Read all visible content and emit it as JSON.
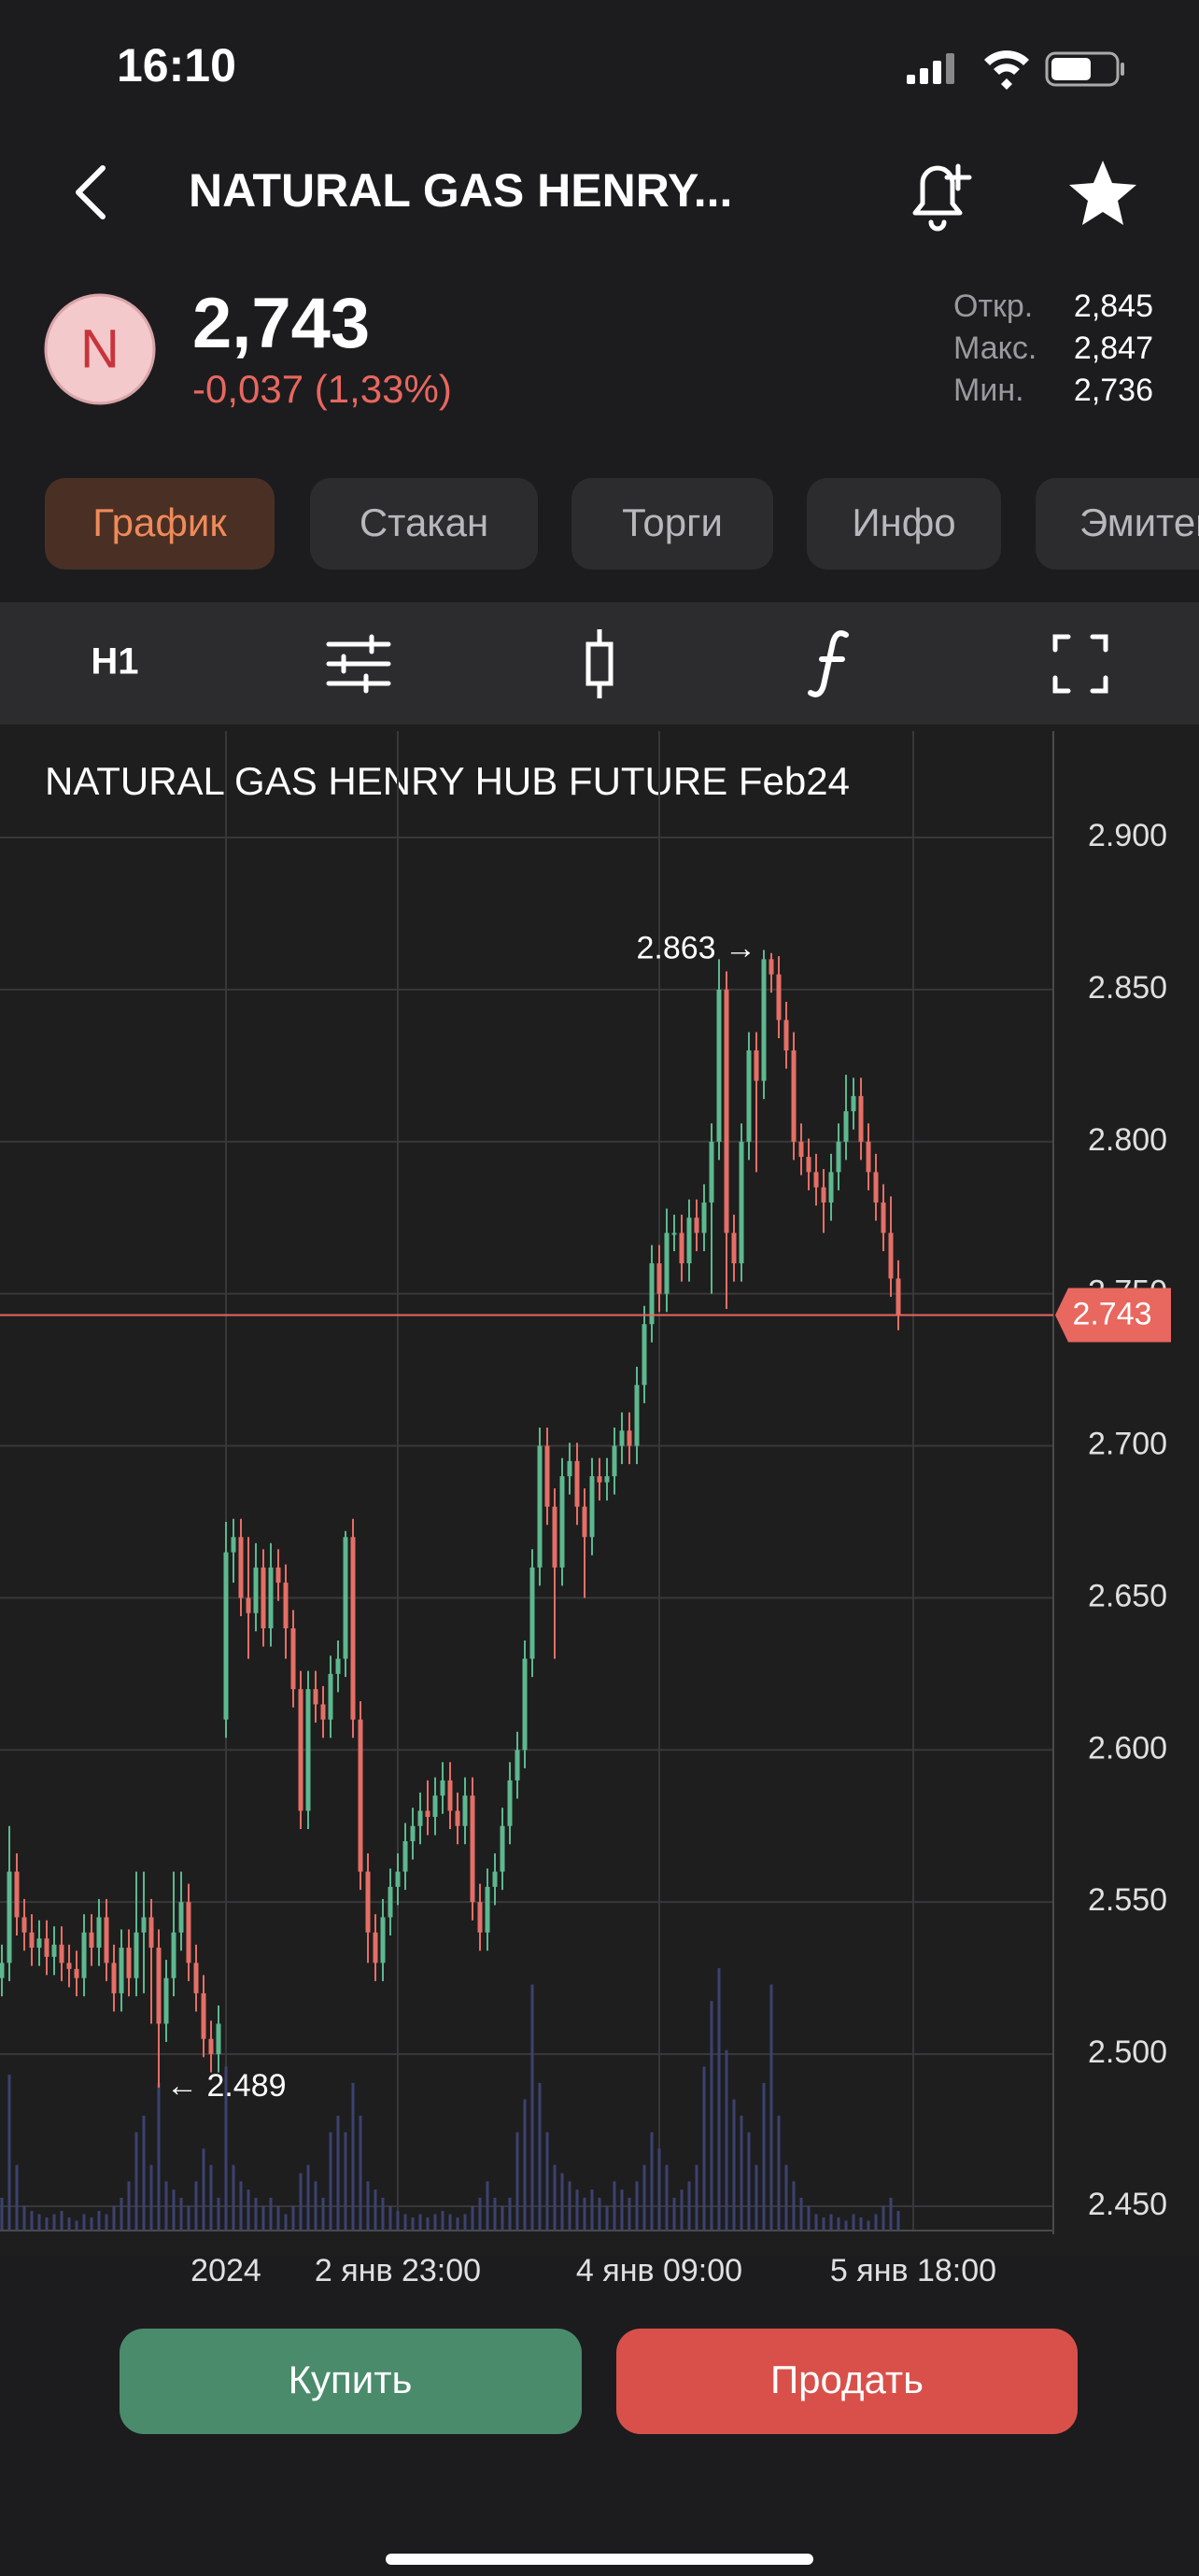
{
  "status_bar": {
    "time": "16:10"
  },
  "header": {
    "title": "NATURAL GAS HENRY..."
  },
  "quote": {
    "icon_letter": "N",
    "price": "2,743",
    "change": "-0,037 (1,33%)",
    "stats": [
      {
        "label": "Откр.",
        "value": "2,845"
      },
      {
        "label": "Макс.",
        "value": "2,847"
      },
      {
        "label": "Мин.",
        "value": "2,736"
      }
    ]
  },
  "tabs": [
    "График",
    "Стакан",
    "Торги",
    "Инфо",
    "Эмитент"
  ],
  "toolbar": {
    "interval": "H1"
  },
  "buttons": {
    "buy": "Купить",
    "sell": "Продать"
  },
  "chart_data": {
    "type": "candlestick",
    "title": "NATURAL GAS HENRY HUB FUTURE Feb24",
    "categories": [
      null,
      null,
      null,
      null,
      null,
      null,
      null,
      null,
      null,
      null,
      null,
      null,
      null,
      null,
      null,
      null,
      null,
      null,
      null,
      null,
      null,
      null,
      null,
      null,
      null,
      null,
      null,
      null,
      null,
      null,
      "2024",
      null,
      null,
      null,
      null,
      null,
      null,
      null,
      null,
      null,
      null,
      null,
      null,
      null,
      null,
      null,
      null,
      null,
      null,
      null,
      null,
      null,
      null,
      "2 янв 23:00",
      null,
      null,
      null,
      null,
      null,
      null,
      null,
      null,
      null,
      null,
      null,
      null,
      null,
      null,
      null,
      null,
      null,
      null,
      null,
      null,
      null,
      null,
      null,
      null,
      null,
      null,
      null,
      null,
      null,
      null,
      null,
      null,
      null,
      null,
      "4 янв 09:00",
      null,
      null,
      null,
      null,
      null,
      null,
      null,
      null,
      null,
      null,
      null,
      null,
      null,
      null,
      null,
      null,
      null,
      null,
      null,
      null,
      null,
      null,
      null,
      null,
      null,
      null,
      null,
      null,
      null,
      null,
      null,
      null,
      null,
      "5 янв 18:00",
      null
    ],
    "open": [
      2.525,
      2.53,
      2.56,
      2.545,
      2.54,
      2.535,
      2.538,
      2.532,
      2.536,
      2.53,
      2.528,
      2.525,
      2.54,
      2.535,
      2.545,
      2.53,
      2.52,
      2.535,
      2.525,
      2.54,
      2.545,
      2.535,
      2.51,
      2.525,
      2.54,
      2.55,
      2.53,
      2.52,
      2.505,
      2.5,
      2.61,
      2.665,
      2.67,
      2.65,
      2.645,
      2.66,
      2.64,
      2.66,
      2.655,
      2.64,
      2.62,
      2.58,
      2.62,
      2.615,
      2.61,
      2.625,
      2.63,
      2.67,
      2.61,
      2.56,
      2.54,
      2.53,
      2.545,
      2.555,
      2.56,
      2.57,
      2.575,
      2.58,
      2.578,
      2.585,
      2.59,
      2.58,
      2.575,
      2.585,
      2.55,
      2.54,
      2.555,
      2.56,
      2.575,
      2.59,
      2.6,
      2.63,
      2.66,
      2.7,
      2.68,
      2.66,
      2.69,
      2.695,
      2.68,
      2.67,
      2.69,
      2.688,
      2.69,
      2.7,
      2.705,
      2.7,
      2.72,
      2.74,
      2.76,
      2.75,
      2.77,
      2.77,
      2.76,
      2.775,
      2.77,
      2.78,
      2.8,
      2.85,
      2.77,
      2.76,
      2.8,
      2.83,
      2.82,
      2.86,
      2.855,
      2.84,
      2.83,
      2.8,
      2.795,
      2.79,
      2.785,
      2.78,
      2.79,
      2.8,
      2.81,
      2.815,
      2.8,
      2.79,
      2.78,
      2.77,
      2.755,
      null,
      null,
      null
    ],
    "high": [
      2.536,
      2.575,
      2.566,
      2.551,
      2.546,
      2.544,
      2.544,
      2.542,
      2.542,
      2.536,
      2.534,
      2.546,
      2.546,
      2.551,
      2.551,
      2.536,
      2.541,
      2.541,
      2.56,
      2.56,
      2.551,
      2.541,
      2.531,
      2.56,
      2.56,
      2.556,
      2.536,
      2.526,
      2.511,
      2.516,
      2.675,
      2.676,
      2.676,
      2.67,
      2.668,
      2.666,
      2.668,
      2.666,
      2.661,
      2.646,
      2.626,
      2.626,
      2.626,
      2.621,
      2.631,
      2.636,
      2.672,
      2.676,
      2.616,
      2.566,
      2.546,
      2.551,
      2.561,
      2.566,
      2.576,
      2.581,
      2.586,
      2.59,
      2.591,
      2.596,
      2.596,
      2.586,
      2.591,
      2.591,
      2.556,
      2.561,
      2.566,
      2.581,
      2.596,
      2.606,
      2.636,
      2.666,
      2.706,
      2.706,
      2.686,
      2.696,
      2.701,
      2.701,
      2.686,
      2.696,
      2.696,
      2.696,
      2.706,
      2.711,
      2.711,
      2.726,
      2.746,
      2.766,
      2.766,
      2.778,
      2.776,
      2.776,
      2.781,
      2.781,
      2.786,
      2.806,
      2.86,
      2.856,
      2.776,
      2.806,
      2.836,
      2.836,
      2.863,
      2.862,
      2.861,
      2.846,
      2.836,
      2.806,
      2.801,
      2.796,
      2.791,
      2.796,
      2.806,
      2.822,
      2.821,
      2.821,
      2.806,
      2.796,
      2.786,
      2.782,
      2.761,
      null,
      null,
      null
    ],
    "low": [
      2.519,
      2.524,
      2.539,
      2.534,
      2.529,
      2.529,
      2.526,
      2.526,
      2.524,
      2.522,
      2.519,
      2.519,
      2.529,
      2.529,
      2.524,
      2.514,
      2.514,
      2.519,
      2.519,
      2.52,
      2.51,
      2.489,
      2.504,
      2.519,
      2.534,
      2.524,
      2.514,
      2.499,
      2.494,
      2.494,
      2.604,
      2.655,
      2.644,
      2.63,
      2.639,
      2.634,
      2.634,
      2.649,
      2.63,
      2.614,
      2.574,
      2.574,
      2.609,
      2.604,
      2.604,
      2.619,
      2.624,
      2.604,
      2.554,
      2.53,
      2.524,
      2.524,
      2.539,
      2.549,
      2.554,
      2.564,
      2.569,
      2.572,
      2.572,
      2.579,
      2.574,
      2.569,
      2.569,
      2.544,
      2.534,
      2.534,
      2.549,
      2.554,
      2.569,
      2.584,
      2.594,
      2.624,
      2.654,
      2.674,
      2.63,
      2.654,
      2.684,
      2.674,
      2.65,
      2.664,
      2.682,
      2.682,
      2.684,
      2.694,
      2.694,
      2.694,
      2.714,
      2.734,
      2.744,
      2.744,
      2.764,
      2.754,
      2.754,
      2.764,
      2.764,
      2.75,
      2.794,
      2.745,
      2.754,
      2.754,
      2.794,
      2.79,
      2.814,
      2.849,
      2.834,
      2.824,
      2.794,
      2.789,
      2.784,
      2.779,
      2.77,
      2.774,
      2.784,
      2.794,
      2.804,
      2.794,
      2.784,
      2.774,
      2.764,
      2.749,
      2.738,
      null,
      null,
      null
    ],
    "close": [
      2.53,
      2.56,
      2.545,
      2.54,
      2.535,
      2.538,
      2.532,
      2.536,
      2.53,
      2.528,
      2.525,
      2.54,
      2.535,
      2.545,
      2.53,
      2.52,
      2.535,
      2.525,
      2.54,
      2.545,
      2.535,
      2.51,
      2.525,
      2.54,
      2.55,
      2.53,
      2.52,
      2.505,
      2.5,
      2.51,
      2.665,
      2.67,
      2.65,
      2.645,
      2.66,
      2.64,
      2.66,
      2.655,
      2.64,
      2.62,
      2.58,
      2.62,
      2.615,
      2.61,
      2.625,
      2.63,
      2.67,
      2.61,
      2.56,
      2.54,
      2.53,
      2.545,
      2.555,
      2.56,
      2.57,
      2.575,
      2.58,
      2.578,
      2.585,
      2.59,
      2.58,
      2.575,
      2.585,
      2.55,
      2.54,
      2.555,
      2.56,
      2.575,
      2.59,
      2.6,
      2.63,
      2.66,
      2.7,
      2.68,
      2.66,
      2.69,
      2.695,
      2.68,
      2.67,
      2.69,
      2.688,
      2.69,
      2.7,
      2.705,
      2.7,
      2.72,
      2.74,
      2.76,
      2.75,
      2.77,
      2.77,
      2.76,
      2.775,
      2.77,
      2.78,
      2.8,
      2.85,
      2.77,
      2.76,
      2.8,
      2.83,
      2.82,
      2.86,
      2.855,
      2.84,
      2.83,
      2.8,
      2.795,
      2.79,
      2.785,
      2.78,
      2.79,
      2.8,
      2.81,
      2.815,
      2.8,
      2.79,
      2.78,
      2.77,
      2.755,
      2.743,
      null,
      null,
      null
    ],
    "volume": [
      20,
      95,
      40,
      15,
      12,
      10,
      8,
      10,
      12,
      8,
      6,
      10,
      8,
      12,
      10,
      15,
      20,
      30,
      60,
      70,
      40,
      90,
      30,
      25,
      20,
      15,
      30,
      50,
      40,
      20,
      100,
      40,
      30,
      25,
      20,
      15,
      20,
      15,
      10,
      15,
      35,
      40,
      30,
      20,
      60,
      70,
      60,
      90,
      70,
      30,
      25,
      20,
      15,
      12,
      10,
      8,
      10,
      8,
      10,
      12,
      10,
      8,
      10,
      15,
      20,
      30,
      20,
      15,
      20,
      60,
      80,
      150,
      90,
      60,
      40,
      35,
      30,
      25,
      20,
      25,
      20,
      15,
      30,
      25,
      20,
      30,
      40,
      60,
      50,
      40,
      20,
      25,
      30,
      40,
      100,
      140,
      160,
      110,
      80,
      70,
      60,
      40,
      90,
      150,
      70,
      40,
      30,
      20,
      15,
      10,
      8,
      10,
      8,
      6,
      10,
      8,
      6,
      10,
      15,
      20,
      12,
      null,
      null,
      null
    ],
    "ylim": [
      2.442,
      2.935
    ],
    "yticks": [
      {
        "value": 2.45,
        "label": "2.450"
      },
      {
        "value": 2.5,
        "label": "2.500"
      },
      {
        "value": 2.55,
        "label": "2.550"
      },
      {
        "value": 2.6,
        "label": "2.600"
      },
      {
        "value": 2.65,
        "label": "2.650"
      },
      {
        "value": 2.7,
        "label": "2.700"
      },
      {
        "value": 2.75,
        "label": "2.750"
      },
      {
        "value": 2.8,
        "label": "2.800"
      },
      {
        "value": 2.85,
        "label": "2.850"
      },
      {
        "value": 2.9,
        "label": "2.900"
      }
    ],
    "grid": true,
    "last_price": {
      "value": 2.743,
      "label": "2.743"
    },
    "max_marker": {
      "value": 2.863,
      "label": "2.863 →"
    },
    "min_marker": {
      "value": 2.489,
      "label": "← 2.489"
    },
    "up_color": "#5db88f",
    "down_color": "#e56f66",
    "volume_color": "#3c4270",
    "last_price_color": "#e8675f"
  }
}
